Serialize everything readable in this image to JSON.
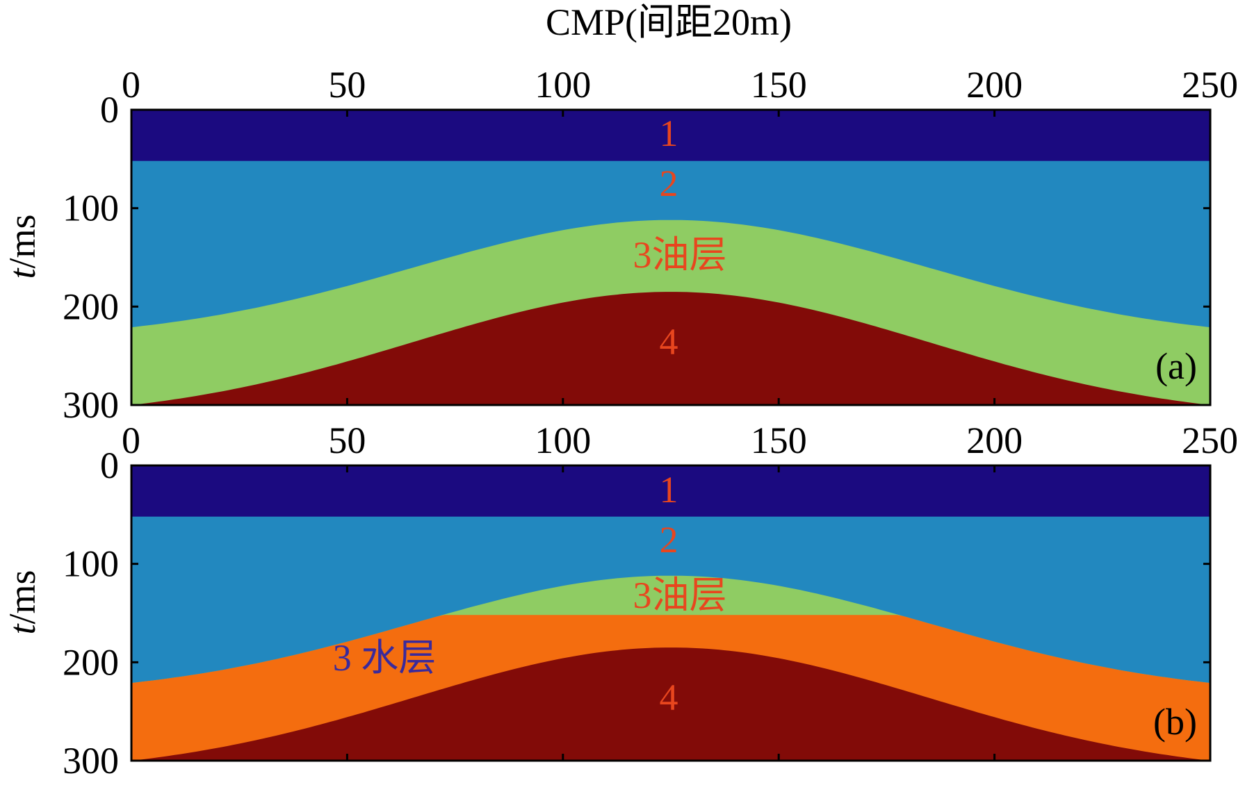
{
  "figure": {
    "x_axis_title": "CMP(间距20m)",
    "y_axis_title_italic": "t",
    "y_axis_title_rest": "/ms",
    "x_ticks": [
      "0",
      "50",
      "100",
      "150",
      "200",
      "250"
    ],
    "y_ticks": [
      "0",
      "100",
      "200",
      "300"
    ],
    "colors": {
      "layer1": "#1b0a80",
      "layer2": "#2288bf",
      "oil": "#8fcc63",
      "water": "#f46d0f",
      "layer4": "#820b08",
      "label_red": "#e8461e",
      "label_blue": "#3a2a9c"
    },
    "panels": [
      {
        "id": "a",
        "panel_label": "(a)",
        "labels": {
          "l1": "1",
          "l2": "2",
          "l3": "3油层",
          "l4": "4"
        }
      },
      {
        "id": "b",
        "panel_label": "(b)",
        "labels": {
          "l1": "1",
          "l2": "2",
          "l3": "3油层",
          "l3w": "3 水层",
          "l4": "4"
        }
      }
    ]
  },
  "chart_data": {
    "type": "area",
    "xlabel": "CMP(间距20m)",
    "ylabel": "t/ms",
    "xlim": [
      0,
      250
    ],
    "ylim": [
      300,
      0
    ],
    "model": {
      "layer1_bottom_ms": 52,
      "top_of_layer3": {
        "edge_cmp0_ms": 221,
        "apex_cmp": 125,
        "apex_ms": 112,
        "edge_cmp250_ms": 221
      },
      "top_of_layer4": {
        "edge_cmp0_ms": 300,
        "apex_cmp": 125,
        "apex_ms": 185,
        "edge_cmp250_ms": 300
      },
      "oil_water_contact_ms": 152
    }
  }
}
